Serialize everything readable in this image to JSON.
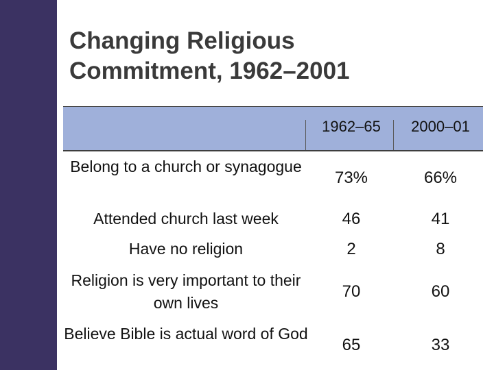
{
  "slide": {
    "title_line1": "Changing Religious",
    "title_line2": "Commitment, 1962–2001"
  },
  "table": {
    "columns": [
      "",
      "1962–65",
      "2000–01"
    ],
    "rows": [
      {
        "label": "Belong to a church or synagogue",
        "v1": "73%",
        "v2": "66%"
      },
      {
        "label": "Attended church last week",
        "v1": "46",
        "v2": "41"
      },
      {
        "label": "Have no religion",
        "v1": "2",
        "v2": "8"
      },
      {
        "label": "Religion is very important to their own lives",
        "v1": "70",
        "v2": "60"
      },
      {
        "label": "Believe Bible is actual word of God",
        "v1": "65",
        "v2": "33"
      }
    ]
  },
  "colors": {
    "side_band": "#3b3262",
    "header_fill": "#9fb0da",
    "title_text": "#3a3a3a"
  }
}
